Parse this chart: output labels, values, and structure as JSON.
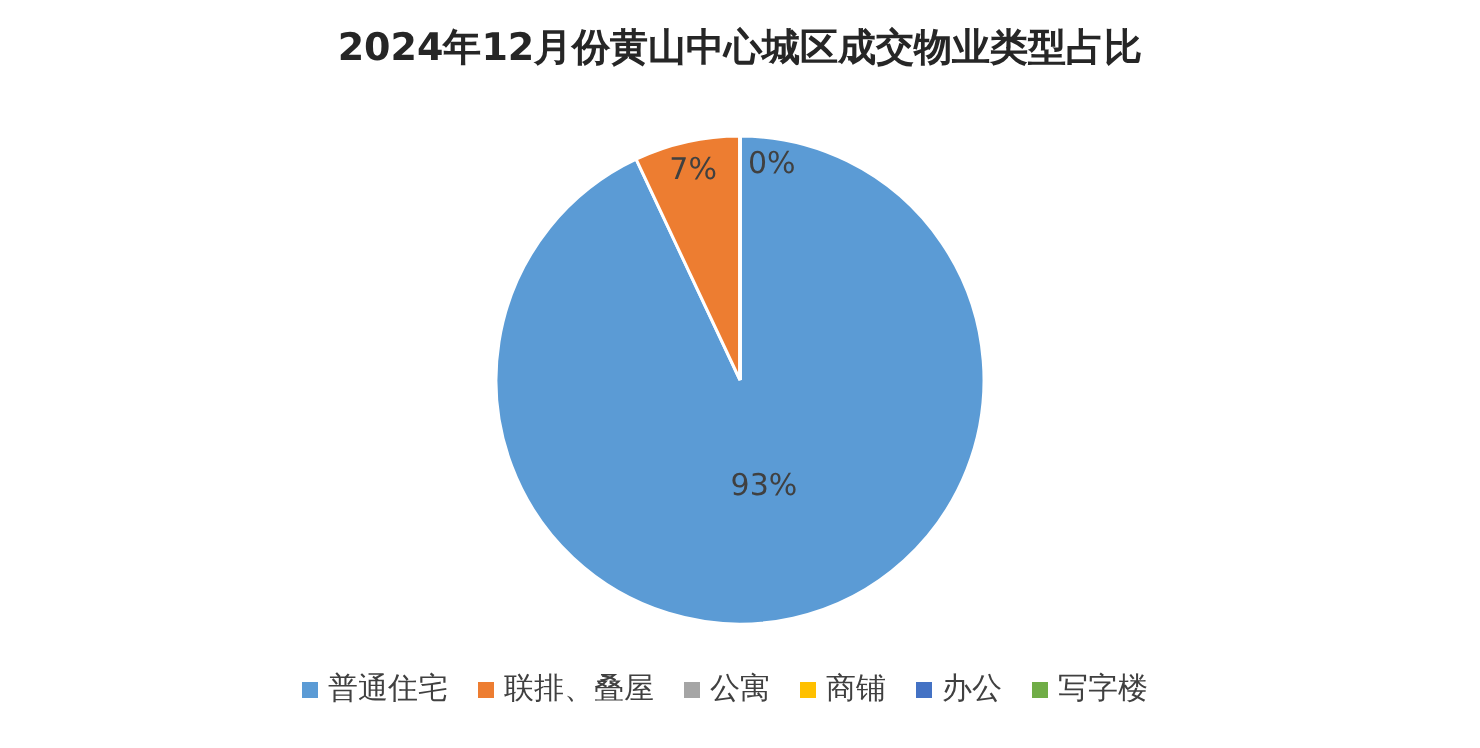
{
  "chart_data": {
    "type": "pie",
    "title": "2024年12月份黄山中心城区成交物业类型占比",
    "categories": [
      "普通住宅",
      "联排、叠屋",
      "公寓",
      "商铺",
      "办公",
      "写字楼"
    ],
    "values": [
      93,
      7,
      0,
      0,
      0,
      0
    ],
    "colors": [
      "#5b9bd5",
      "#ed7d31",
      "#a5a5a5",
      "#ffc000",
      "#4472c4",
      "#70ad47"
    ],
    "value_labels": [
      "93%",
      "7%",
      "0%",
      null,
      null,
      null
    ],
    "legend": "bottom"
  }
}
